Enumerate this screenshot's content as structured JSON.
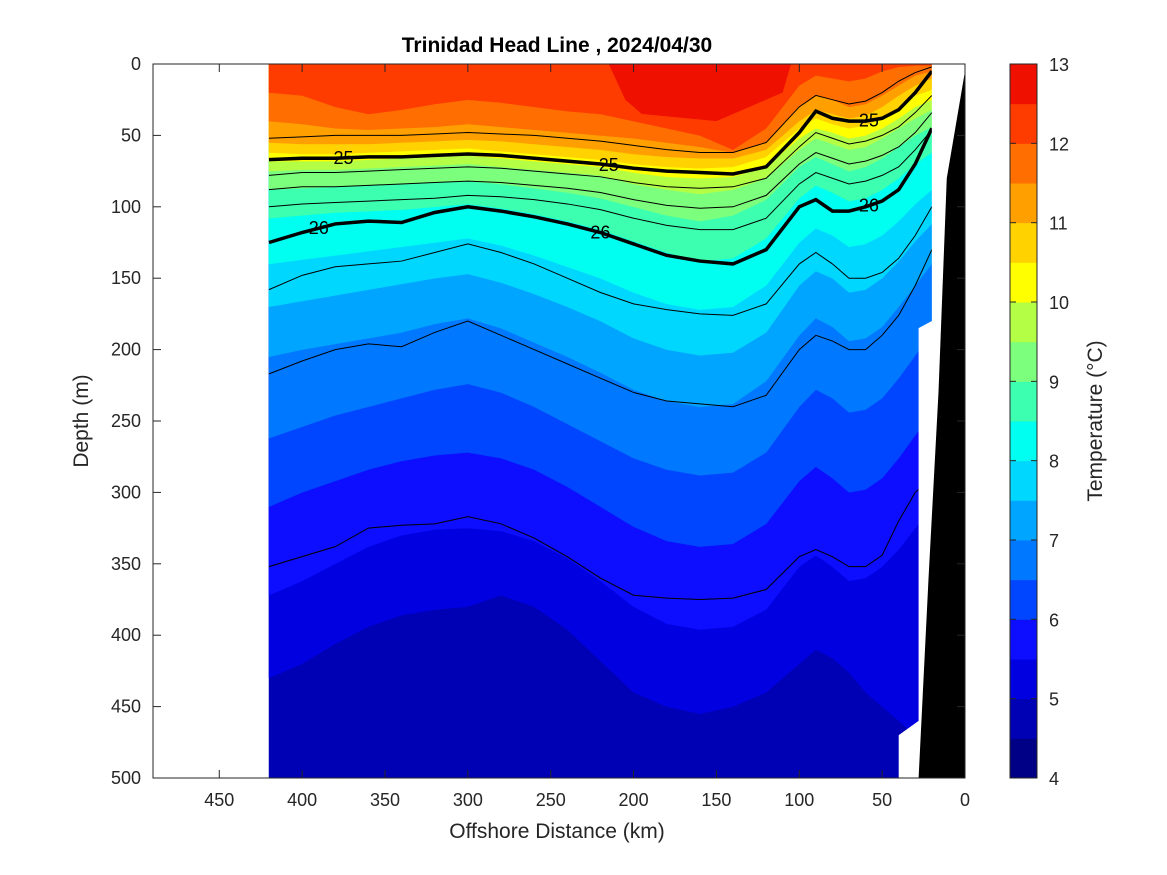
{
  "chart_data": {
    "type": "contour",
    "title": "Trinidad Head Line , 2024/04/30",
    "xlabel": "Offshore Distance (km)",
    "ylabel": "Depth (m)",
    "xlim": [
      490,
      0
    ],
    "ylim": [
      0,
      500
    ],
    "x_ticks": [
      "450",
      "400",
      "350",
      "300",
      "250",
      "200",
      "150",
      "100",
      "50",
      "0"
    ],
    "y_ticks": [
      "0",
      "50",
      "100",
      "150",
      "200",
      "250",
      "300",
      "350",
      "400",
      "450",
      "500"
    ],
    "colorbar": {
      "label": "Temperature (°C)",
      "ticks": [
        "4",
        "5",
        "6",
        "7",
        "8",
        "9",
        "10",
        "11",
        "12",
        "13"
      ],
      "range": [
        4,
        13
      ],
      "step": 0.5,
      "colors": [
        "#000087",
        "#0000b4",
        "#0000e1",
        "#0d0dff",
        "#0045ff",
        "#0078ff",
        "#00a5ff",
        "#00d7ff",
        "#00fff0",
        "#3dffb0",
        "#7cff7c",
        "#b4ff46",
        "#ffff00",
        "#ffd200",
        "#ffa000",
        "#ff6e00",
        "#ff3c00",
        "#f01000",
        "#c80000",
        "#a00000"
      ]
    },
    "section_x_range_km": [
      420,
      20
    ],
    "isotherm_depths_m": {
      "x_km": [
        420,
        400,
        380,
        360,
        340,
        320,
        300,
        280,
        260,
        240,
        220,
        200,
        180,
        160,
        140,
        120,
        100,
        90,
        80,
        70,
        60,
        50,
        40,
        30,
        20
      ],
      "t_12": [
        20,
        22,
        30,
        35,
        32,
        28,
        25,
        27,
        30,
        33,
        35,
        40,
        45,
        50,
        60,
        45,
        15,
        8,
        10,
        12,
        10,
        5,
        2,
        1,
        1
      ],
      "t_11_5": [
        40,
        42,
        45,
        46,
        45,
        44,
        42,
        44,
        46,
        48,
        50,
        52,
        55,
        58,
        62,
        55,
        30,
        22,
        25,
        30,
        28,
        22,
        15,
        8,
        5
      ],
      "t_11": [
        55,
        56,
        56,
        56,
        55,
        54,
        53,
        54,
        56,
        58,
        60,
        63,
        65,
        66,
        66,
        60,
        40,
        32,
        35,
        38,
        36,
        30,
        22,
        15,
        10
      ],
      "t_10_5": [
        62,
        63,
        63,
        62,
        61,
        60,
        59,
        61,
        63,
        65,
        67,
        70,
        72,
        73,
        72,
        65,
        45,
        38,
        42,
        45,
        43,
        38,
        30,
        22,
        18
      ],
      "t_10": [
        68,
        68,
        68,
        67,
        66,
        65,
        64,
        66,
        68,
        70,
        72,
        76,
        79,
        80,
        79,
        72,
        52,
        45,
        48,
        52,
        50,
        45,
        38,
        30,
        25
      ],
      "t_9_5": [
        75,
        74,
        74,
        73,
        72,
        71,
        70,
        72,
        74,
        76,
        78,
        84,
        88,
        91,
        88,
        80,
        60,
        52,
        56,
        60,
        58,
        52,
        45,
        38,
        32
      ],
      "t_9": [
        88,
        87,
        86,
        85,
        84,
        83,
        82,
        84,
        87,
        90,
        94,
        100,
        106,
        110,
        106,
        95,
        72,
        65,
        70,
        75,
        72,
        66,
        58,
        50,
        44
      ],
      "t_8_5": [
        108,
        106,
        104,
        103,
        102,
        100,
        98,
        101,
        105,
        110,
        116,
        124,
        132,
        138,
        136,
        122,
        94,
        85,
        90,
        96,
        94,
        88,
        80,
        70,
        62
      ],
      "t_8": [
        140,
        137,
        134,
        131,
        128,
        125,
        122,
        127,
        134,
        142,
        150,
        160,
        168,
        172,
        170,
        155,
        125,
        115,
        120,
        128,
        126,
        120,
        110,
        98,
        88
      ],
      "t_7_5": [
        170,
        166,
        162,
        158,
        154,
        150,
        147,
        153,
        161,
        170,
        180,
        192,
        200,
        204,
        202,
        188,
        155,
        145,
        150,
        160,
        158,
        150,
        138,
        124,
        112
      ],
      "t_7": [
        205,
        200,
        196,
        192,
        188,
        182,
        178,
        185,
        195,
        205,
        216,
        228,
        236,
        240,
        238,
        222,
        190,
        178,
        184,
        194,
        192,
        184,
        170,
        155,
        140
      ],
      "t_6_5": [
        262,
        254,
        246,
        240,
        234,
        228,
        224,
        230,
        240,
        252,
        264,
        276,
        284,
        288,
        286,
        272,
        240,
        228,
        234,
        244,
        242,
        234,
        220,
        204,
        188
      ],
      "t_6": [
        310,
        300,
        292,
        284,
        278,
        274,
        272,
        276,
        284,
        296,
        310,
        324,
        334,
        338,
        336,
        322,
        292,
        282,
        290,
        300,
        298,
        290,
        276,
        260,
        245
      ],
      "t_5_5": [
        372,
        362,
        350,
        338,
        330,
        326,
        325,
        327,
        334,
        346,
        362,
        380,
        392,
        396,
        394,
        382,
        352,
        344,
        352,
        362,
        360,
        352,
        340,
        325,
        310
      ],
      "t_5": [
        430,
        420,
        406,
        394,
        386,
        382,
        380,
        372,
        380,
        396,
        418,
        440,
        450,
        455,
        450,
        440,
        420,
        410,
        416,
        426,
        440,
        450,
        460,
        470,
        480
      ],
      "t_4_5": [
        510,
        510,
        505,
        492,
        484,
        482,
        478,
        472,
        480,
        505,
        510,
        510,
        510,
        510,
        510,
        510,
        510,
        510,
        510,
        510,
        510,
        510,
        510,
        510,
        510
      ]
    },
    "density_contours": {
      "labels": [
        "25",
        "26",
        "25",
        "26",
        "25",
        "26"
      ],
      "x_km": [
        420,
        400,
        380,
        360,
        340,
        320,
        300,
        280,
        260,
        240,
        220,
        200,
        180,
        160,
        140,
        120,
        100,
        90,
        80,
        70,
        60,
        50,
        40,
        30,
        20
      ],
      "sigma_25": [
        67,
        66,
        66,
        65,
        65,
        64,
        63,
        64,
        66,
        68,
        70,
        73,
        75,
        76,
        77,
        72,
        48,
        33,
        38,
        40,
        40,
        38,
        32,
        20,
        5
      ],
      "sigma_26": [
        125,
        118,
        112,
        110,
        111,
        104,
        100,
        103,
        107,
        112,
        118,
        126,
        134,
        138,
        140,
        130,
        100,
        95,
        103,
        103,
        100,
        96,
        88,
        70,
        45
      ],
      "thin": [
        [
          52,
          51,
          50,
          50,
          50,
          49,
          48,
          49,
          50,
          52,
          54,
          57,
          60,
          62,
          62,
          55,
          30,
          22,
          25,
          28,
          26,
          20,
          12,
          6,
          2
        ],
        [
          78,
          76,
          76,
          75,
          74,
          73,
          72,
          73,
          75,
          77,
          79,
          83,
          86,
          87,
          86,
          80,
          58,
          48,
          52,
          56,
          54,
          50,
          44,
          34,
          22
        ],
        [
          88,
          86,
          86,
          85,
          84,
          83,
          82,
          83,
          85,
          87,
          90,
          95,
          99,
          101,
          100,
          92,
          70,
          62,
          66,
          70,
          68,
          64,
          58,
          48,
          34
        ],
        [
          100,
          98,
          97,
          96,
          95,
          94,
          92,
          93,
          95,
          98,
          102,
          108,
          113,
          116,
          116,
          108,
          84,
          76,
          80,
          84,
          82,
          78,
          72,
          60,
          46
        ],
        [
          158,
          148,
          142,
          140,
          138,
          132,
          126,
          132,
          140,
          150,
          160,
          168,
          172,
          175,
          176,
          168,
          140,
          132,
          140,
          150,
          150,
          146,
          136,
          120,
          100
        ],
        [
          217,
          208,
          200,
          196,
          198,
          188,
          180,
          190,
          200,
          210,
          220,
          230,
          236,
          238,
          240,
          232,
          200,
          190,
          194,
          200,
          200,
          190,
          176,
          155,
          130
        ],
        [
          352,
          345,
          338,
          325,
          323,
          322,
          317,
          322,
          332,
          345,
          360,
          372,
          374,
          375,
          374,
          368,
          345,
          340,
          345,
          352,
          352,
          344,
          320,
          300,
          290
        ]
      ]
    },
    "bathymetry": "black wedge on right from ~30 km at 500 m to 0 km at surface"
  }
}
